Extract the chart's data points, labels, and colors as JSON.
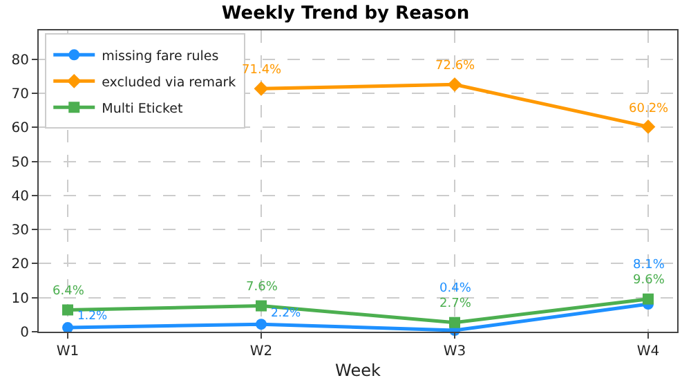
{
  "chart_data": {
    "type": "line",
    "title": "Weekly Trend by Reason",
    "xlabel": "Week",
    "categories": [
      "W1",
      "W2",
      "W3",
      "W4"
    ],
    "series": [
      {
        "name": "missing fare rules",
        "color": "#1e90ff",
        "marker": "circle",
        "values": [
          1.2,
          2.2,
          0.4,
          8.1
        ],
        "value_labels": [
          "1.2%",
          "2.2%",
          "0.4%",
          "8.1%"
        ]
      },
      {
        "name": "excluded via remark",
        "color": "#ff9900",
        "marker": "diamond",
        "values": [
          null,
          71.4,
          72.6,
          60.2
        ],
        "value_labels": [
          null,
          "71.4%",
          "72.6%",
          "60.2%"
        ]
      },
      {
        "name": "Multi Eticket",
        "color": "#4caf50",
        "marker": "square",
        "values": [
          6.4,
          7.6,
          2.7,
          9.6
        ],
        "value_labels": [
          "6.4%",
          "7.6%",
          "2.7%",
          "9.6%"
        ]
      }
    ],
    "ylim": [
      0,
      88.5
    ],
    "yticks": [
      0,
      10,
      20,
      30,
      40,
      50,
      60,
      70,
      80
    ],
    "grid": true,
    "legend": "top left",
    "line_style": "solid"
  }
}
